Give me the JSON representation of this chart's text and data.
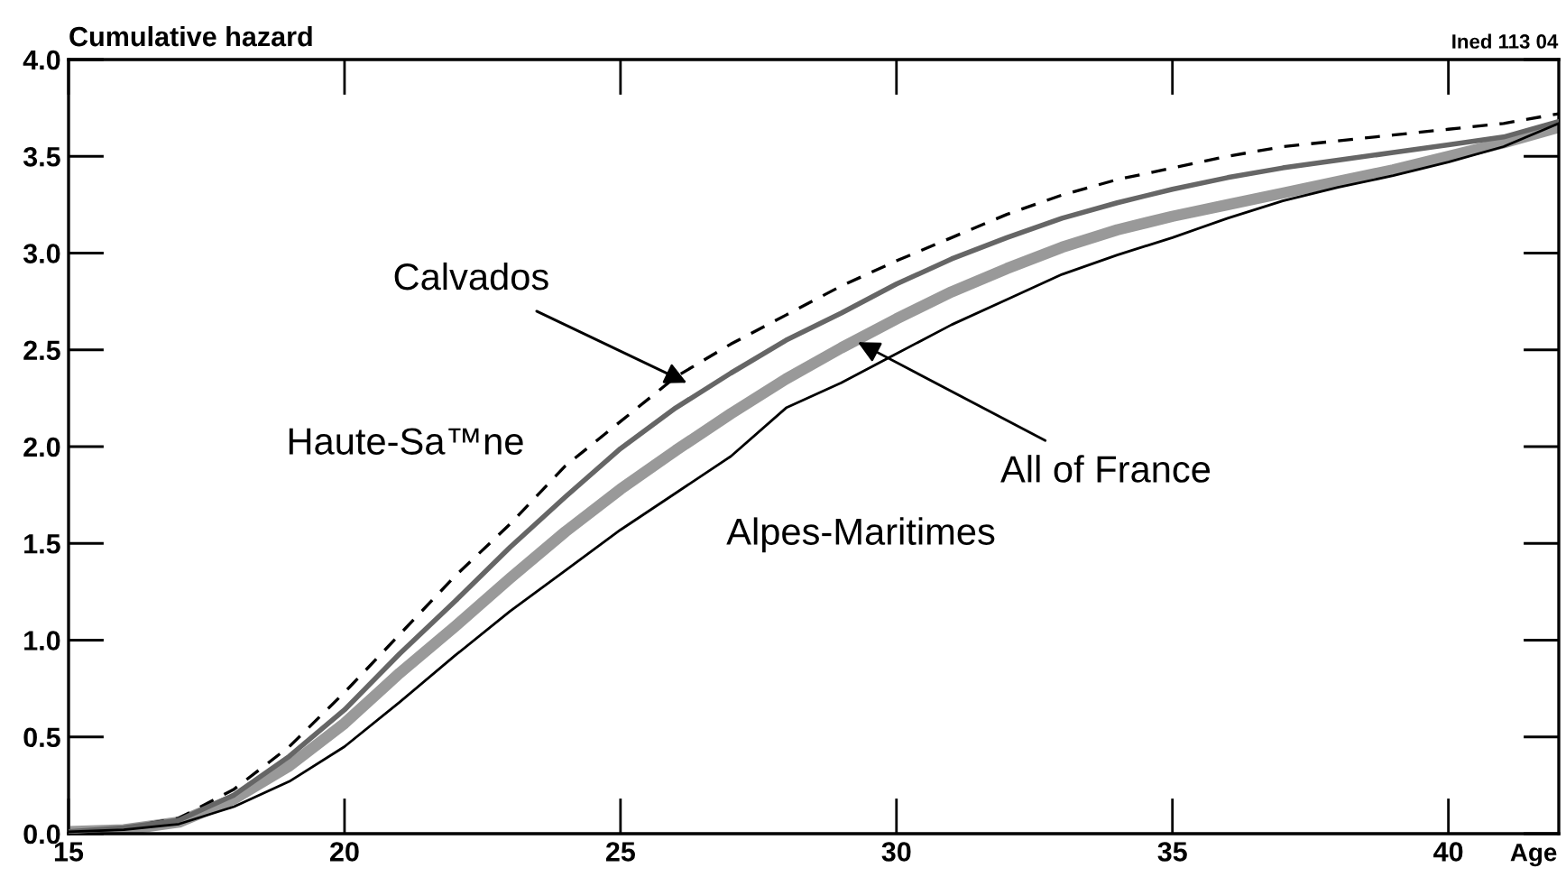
{
  "chart_data": {
    "type": "line",
    "xlabel": "Age",
    "ylabel": "Cumulative hazard",
    "x": [
      15,
      16,
      17,
      18,
      19,
      20,
      21,
      22,
      23,
      24,
      25,
      26,
      27,
      28,
      29,
      30,
      31,
      32,
      33,
      34,
      35,
      36,
      37,
      38,
      39,
      40,
      41,
      42
    ],
    "series": [
      {
        "color": "#000000",
        "line_style": "dashed",
        "values": [
          0.01,
          0.03,
          0.08,
          0.23,
          0.45,
          0.73,
          1.03,
          1.33,
          1.6,
          1.9,
          2.13,
          2.36,
          2.53,
          2.68,
          2.83,
          2.96,
          3.08,
          3.2,
          3.3,
          3.38,
          3.44,
          3.5,
          3.55,
          3.58,
          3.61,
          3.64,
          3.67,
          3.72
        ]
      },
      {
        "color": "#666666",
        "line_style": "solid",
        "values": [
          0.01,
          0.03,
          0.07,
          0.2,
          0.4,
          0.64,
          0.93,
          1.2,
          1.48,
          1.74,
          1.99,
          2.2,
          2.38,
          2.55,
          2.69,
          2.84,
          2.97,
          3.08,
          3.18,
          3.26,
          3.33,
          3.39,
          3.44,
          3.48,
          3.52,
          3.56,
          3.6,
          3.68
        ]
      },
      {
        "color": "#999999",
        "line_style": "solid",
        "values": [
          0.01,
          0.02,
          0.06,
          0.18,
          0.35,
          0.57,
          0.83,
          1.07,
          1.32,
          1.56,
          1.78,
          1.98,
          2.17,
          2.35,
          2.51,
          2.66,
          2.8,
          2.92,
          3.03,
          3.12,
          3.19,
          3.25,
          3.31,
          3.37,
          3.43,
          3.5,
          3.57,
          3.65
        ]
      },
      {
        "color": "#000000",
        "line_style": "solid",
        "values": [
          0.01,
          0.02,
          0.05,
          0.14,
          0.27,
          0.45,
          0.68,
          0.92,
          1.15,
          1.36,
          1.57,
          1.76,
          1.95,
          2.2,
          2.33,
          2.48,
          2.63,
          2.76,
          2.89,
          2.99,
          3.08,
          3.18,
          3.27,
          3.34,
          3.4,
          3.47,
          3.55,
          3.67
        ]
      }
    ],
    "annotations": [
      {
        "text": "Calvados",
        "x": 26.2,
        "y": 2.33
      },
      {
        "text": "Haute-Sa™ne",
        "x": 24.1,
        "y": 1.92
      },
      {
        "text": "All of France",
        "x": 29.3,
        "y": 2.54
      },
      {
        "text": "Alpes-Maritimes",
        "x": 25,
        "y": 1.57
      },
      "Ined 113 04"
    ],
    "xlim": [
      15,
      42
    ],
    "ylim": [
      0,
      4.0
    ],
    "xticks": [
      15,
      20,
      25,
      30,
      35,
      40
    ],
    "yticks": [
      {
        "value": 0,
        "label": "0.0"
      },
      {
        "value": 0.5,
        "label": "0.5"
      },
      {
        "value": 1,
        "label": "1.0"
      },
      {
        "value": 1.5,
        "label": "1.5"
      },
      {
        "value": 2,
        "label": "2.0"
      },
      {
        "value": 2.5,
        "label": "2.5"
      },
      {
        "value": 3,
        "label": "3.0"
      },
      {
        "value": 3.5,
        "label": "3.5"
      },
      {
        "value": 4,
        "label": "4.0"
      }
    ],
    "grid": false,
    "legend": false
  }
}
